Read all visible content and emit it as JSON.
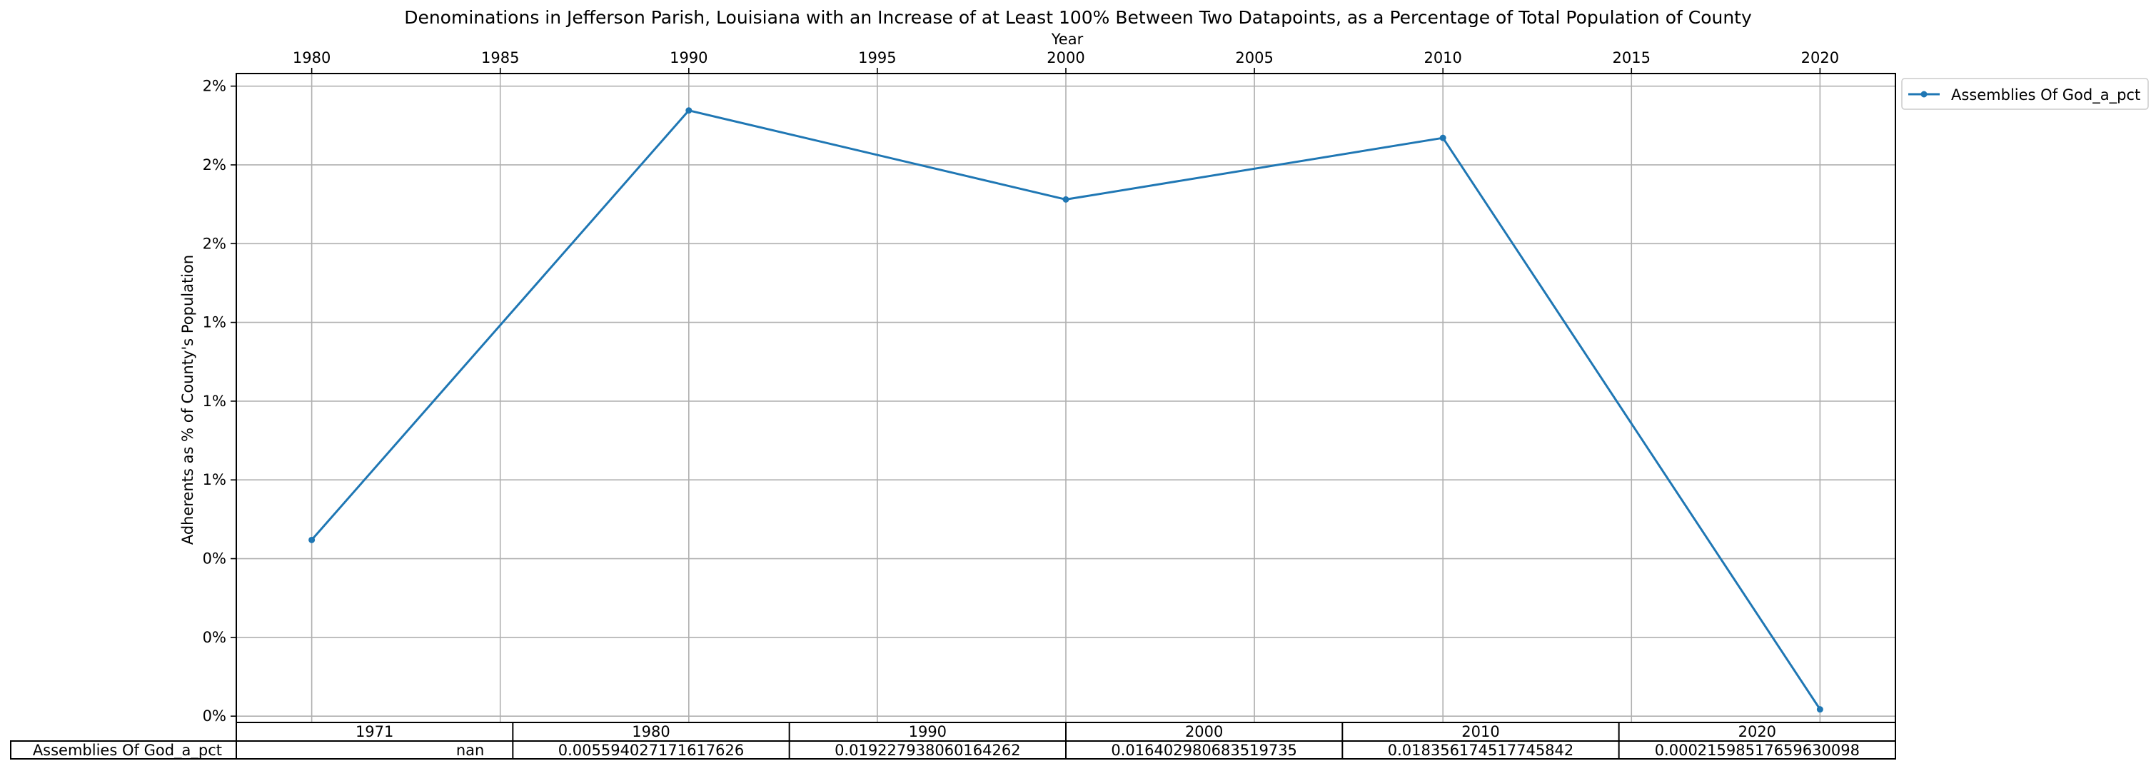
{
  "chart_data": {
    "type": "line",
    "title": "Denominations in Jefferson Parish, Louisiana with an Increase of at Least 100% Between Two Datapoints, as a Percentage of Total Population of County",
    "xlabel": "Year",
    "ylabel": "Adherents as % of County's Population",
    "x_ticks": [
      1980,
      1985,
      1990,
      1995,
      2000,
      2005,
      2010,
      2015,
      2020
    ],
    "x_tick_labels": [
      "1980",
      "1985",
      "1990",
      "1995",
      "2000",
      "2005",
      "2010",
      "2015",
      "2020"
    ],
    "y_ticks": [
      0.0,
      0.0025,
      0.005,
      0.0075,
      0.01,
      0.0125,
      0.015,
      0.0175,
      0.02
    ],
    "y_tick_labels": [
      "0%",
      "0%",
      "0%",
      "1%",
      "1%",
      "1%",
      "2%",
      "2%",
      "2%"
    ],
    "xlim": [
      1978,
      2022
    ],
    "ylim": [
      -0.0002,
      0.0204
    ],
    "grid": true,
    "legend_position": "outside-top-right",
    "series": [
      {
        "name": "Assemblies Of God_a_pct",
        "color": "#1f77b4",
        "x": [
          1980,
          1990,
          2000,
          2010,
          2020
        ],
        "y": [
          0.005594027171617626,
          0.019227938060164262,
          0.016402980683519735,
          0.018356174517745842,
          0.00021598517659630098
        ]
      }
    ],
    "table": {
      "columns": [
        "1971",
        "1980",
        "1990",
        "2000",
        "2010",
        "2020"
      ],
      "rows": [
        {
          "label": "Assemblies Of God_a_pct",
          "cells": [
            "nan",
            "0.005594027171617626",
            "0.019227938060164262",
            "0.016402980683519735",
            "0.018356174517745842",
            "0.00021598517659630098"
          ]
        }
      ]
    }
  }
}
